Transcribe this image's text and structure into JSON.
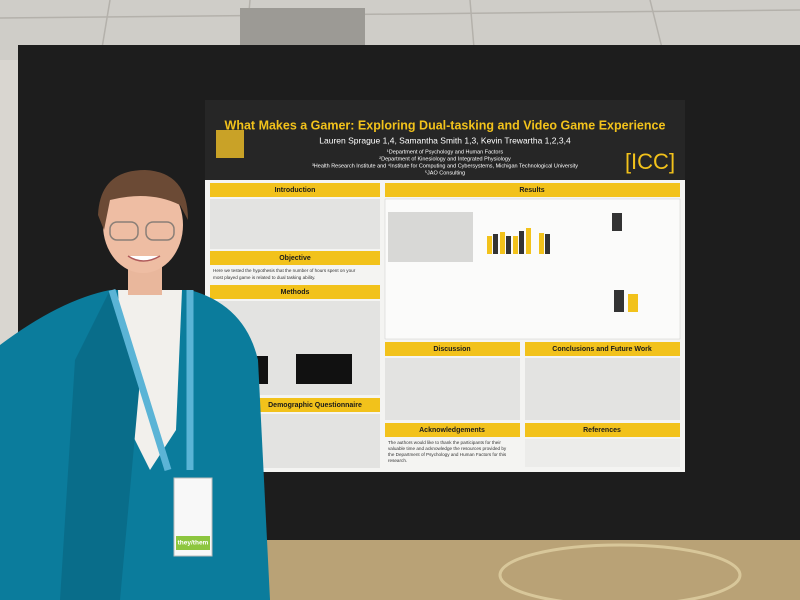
{
  "poster": {
    "title": "What Makes a Gamer: Exploring Dual-tasking and Video Game Experience",
    "authors": "Lauren Sprague 1,4, Samantha Smith 1,3, Kevin Trewartha 1,2,3,4",
    "affiliations": [
      "¹Department of Psychology and Human Factors",
      "²Department of Kinesiology and Integrated Physiology",
      "³Health Research Institute and ⁴Institute for Computing and Cybersystems, Michigan Technological University",
      "⁵JAO Consulting"
    ],
    "logo": "[ICC]",
    "sections": {
      "introduction": "Introduction",
      "objective": "Objective",
      "objective_text": [
        "Here we tested the hypothesis that the number of hours spent on your",
        "most played game is related to dual tasking ability."
      ],
      "methods": "Methods",
      "demographic": "Demographic Questionnaire",
      "results": "Results",
      "discussion": "Discussion",
      "conclusions": "Conclusions and Future Work",
      "acknowledgements": "Acknowledgements",
      "acknowledgements_text": [
        "The authors would like to thank the participants for their",
        "valuable time and acknowledge the resources provided by",
        "the Department of Psychology and Human Factors for this",
        "research."
      ],
      "references": "References"
    }
  },
  "badge": {
    "pronouns": "they/them"
  }
}
